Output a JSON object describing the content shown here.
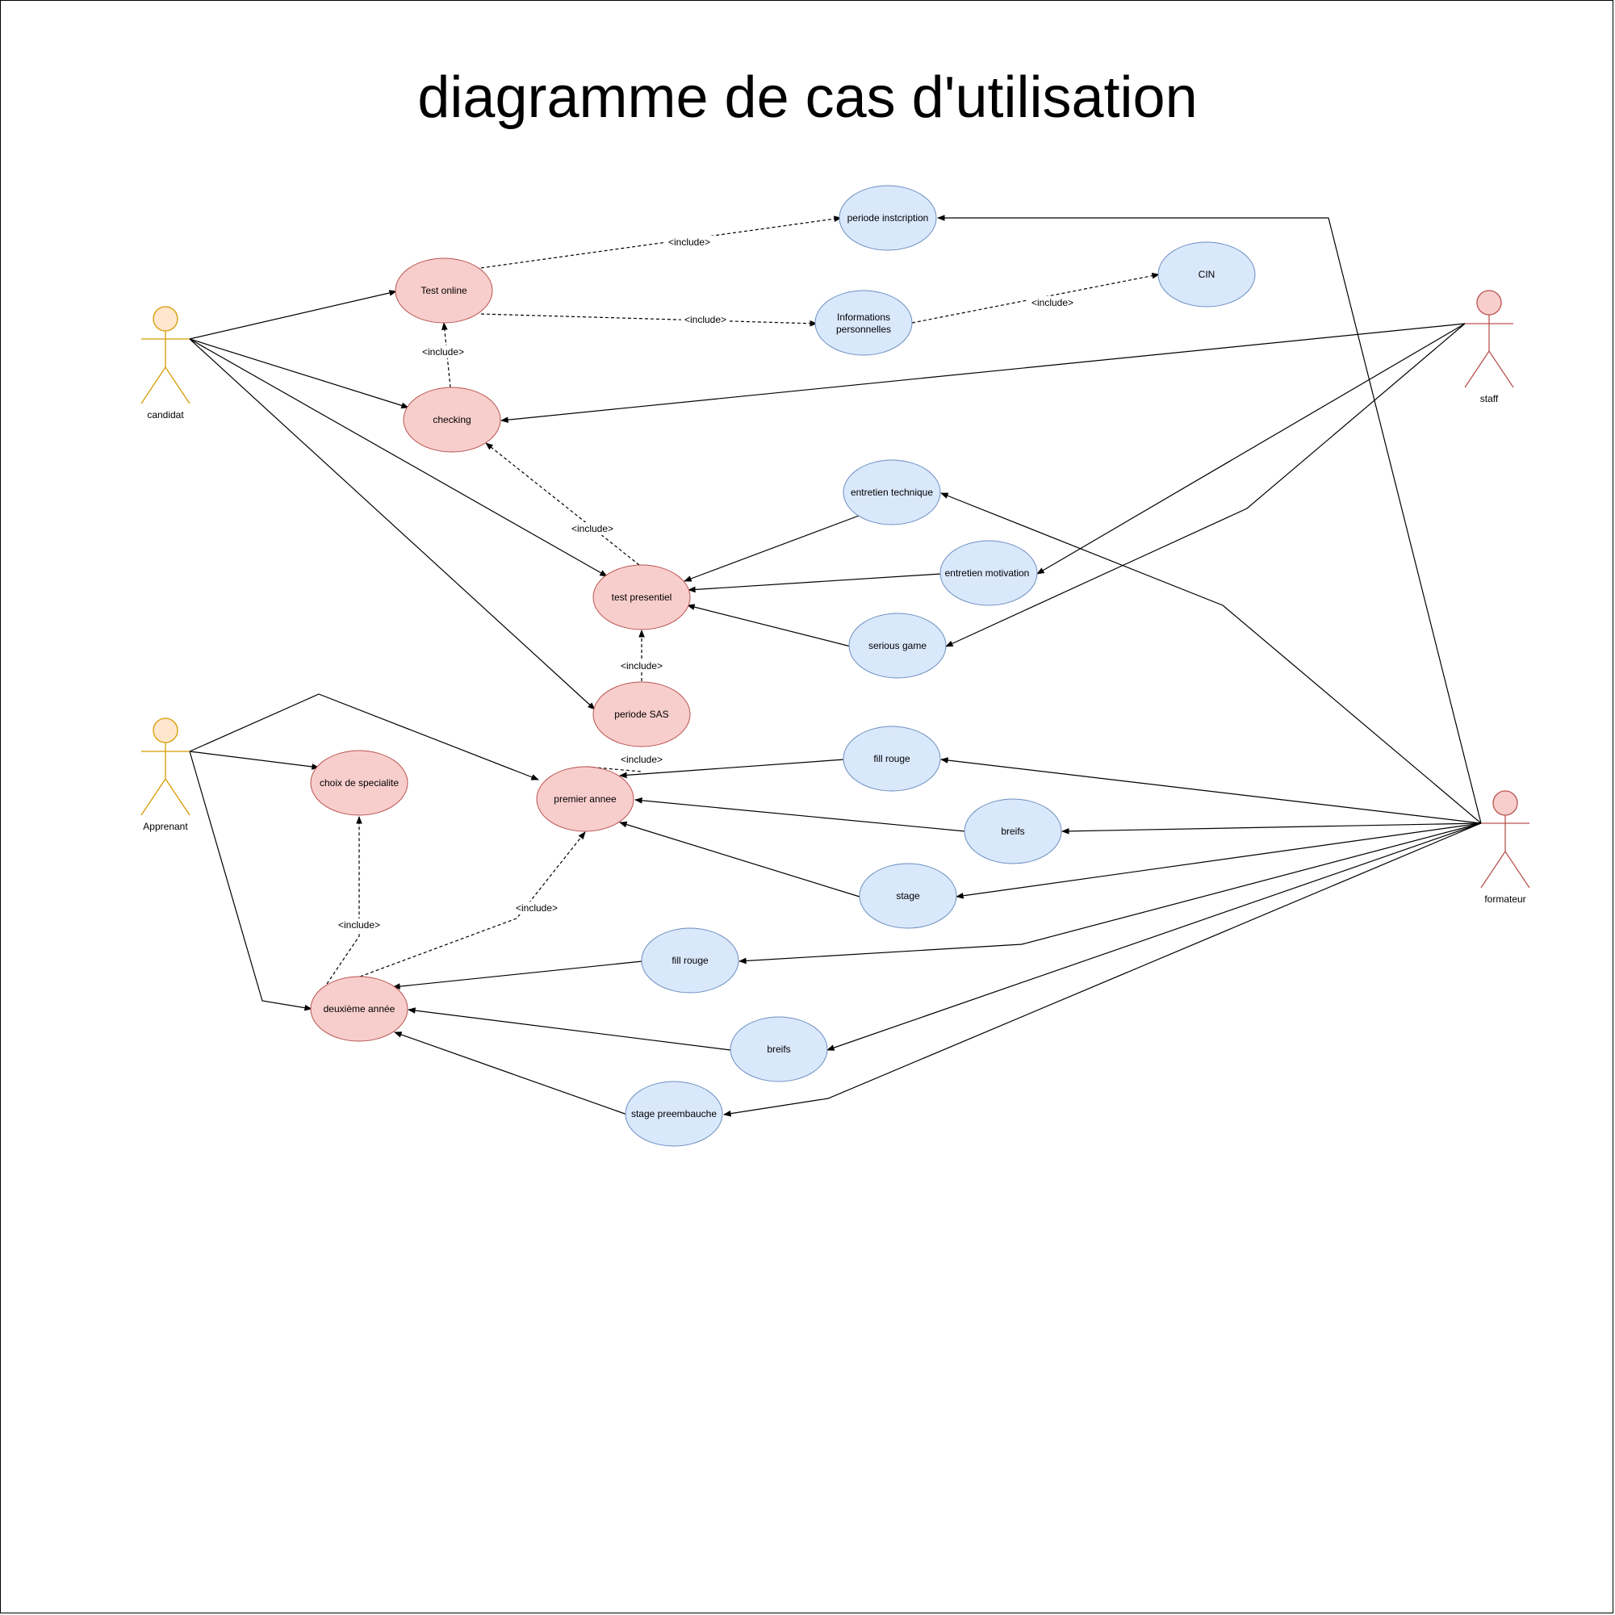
{
  "title": "diagramme de cas d'utilisation",
  "colors": {
    "candidate_fill": "#f8cecc",
    "candidate_stroke": "#b85450",
    "system_fill": "#dae8fc",
    "system_stroke": "#6c8ebf",
    "actor_yellow_fill": "#ffe6cc",
    "actor_yellow_stroke": "#d79b00",
    "actor_red_fill": "#f8cecc",
    "actor_red_stroke": "#b85450"
  },
  "actors": {
    "candidat": "candidat",
    "apprenant": "Apprenant",
    "staff": "staff",
    "formateur": "formateur"
  },
  "use_cases": {
    "test_online": "Test online",
    "checking": "checking",
    "test_presentiel": "test presentiel",
    "periode_sas": "periode SAS",
    "choix_specialite": "choix de specialite",
    "premier_annee": "premier annee",
    "deuxieme_annee": "deuxième année",
    "periode_inscription": "periode instcription",
    "informations_personnelles_1": "Informations",
    "informations_personnelles_2": "personnelles",
    "cin": "CIN",
    "entretien_technique": "entretien technique",
    "entretien_motivation": "entretien  motivation",
    "serious_game": "serious game",
    "fill_rouge_1": "fill rouge",
    "breifs_1": "breifs",
    "stage": "stage",
    "fill_rouge_2": "fill rouge",
    "breifs_2": "breifs",
    "stage_preembauche": "stage preembauche"
  },
  "include_label": "<include>"
}
